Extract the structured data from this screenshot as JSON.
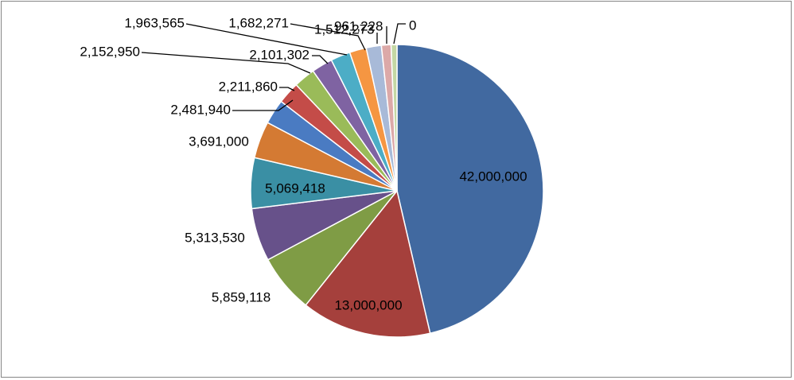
{
  "chart_data": {
    "type": "pie",
    "values": [
      42000000,
      13000000,
      5859118,
      5313530,
      5069418,
      3691000,
      2481940,
      2211860,
      2152950,
      2101302,
      1963565,
      1682271,
      1512273,
      961228,
      0
    ],
    "labels": [
      "42,000,000",
      "13,000,000",
      "5,859,118",
      "5,313,530",
      "5,069,418",
      "3,691,000",
      "2,481,940",
      "2,211,860",
      "2,152,950",
      "2,101,302",
      "1,963,565",
      "1,682,271",
      "1,512,273",
      "961,228",
      "0"
    ],
    "colors": [
      "#4169a0",
      "#a5403c",
      "#7f9c45",
      "#67518a",
      "#3a8fa4",
      "#d47a33",
      "#4a7bc2",
      "#c44c48",
      "#9abb59",
      "#7f63a2",
      "#4cadc6",
      "#f59642",
      "#a8bad8",
      "#dca9a8",
      "#c4d7a4"
    ],
    "start": "12 o'clock",
    "direction": "clockwise",
    "legend": "none"
  }
}
